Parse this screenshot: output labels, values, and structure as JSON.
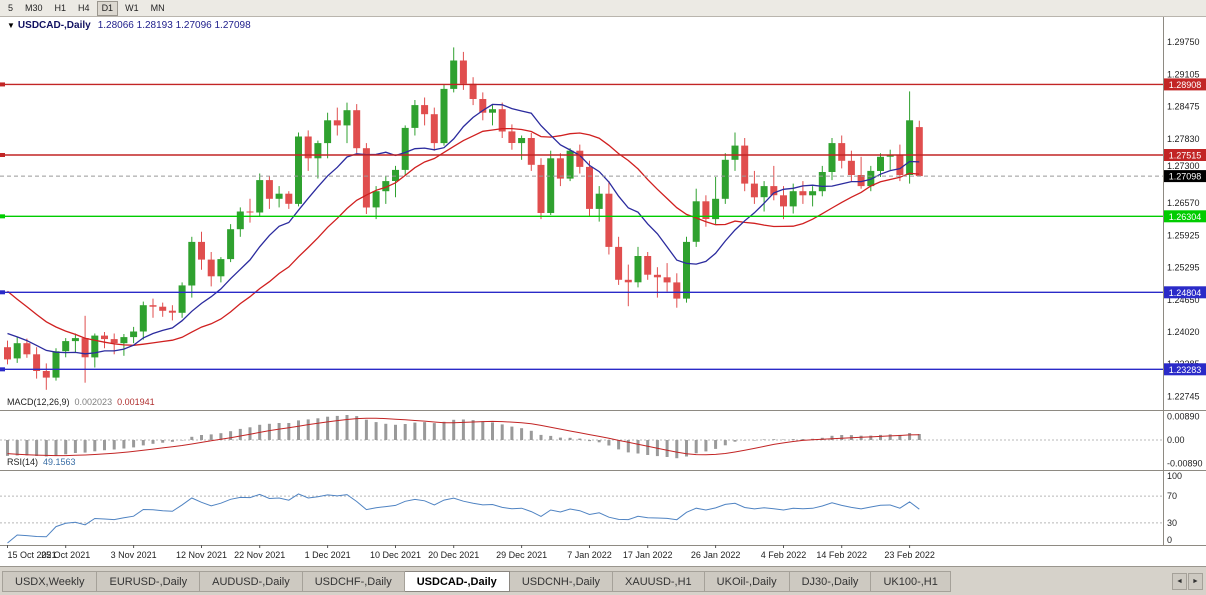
{
  "toolbar": {
    "timeframes": [
      "5",
      "M30",
      "H1",
      "H4",
      "D1",
      "W1",
      "MN"
    ],
    "active": "D1"
  },
  "chart": {
    "title_marker": "▼",
    "title_symbol": "USDCAD-,Daily",
    "title_ohlc": "1.28066 1.28193 1.27096 1.27098"
  },
  "tabs": {
    "items": [
      "USDX,Weekly",
      "EURUSD-,Daily",
      "AUDUSD-,Daily",
      "USDCHF-,Daily",
      "USDCAD-,Daily",
      "USDCNH-,Daily",
      "XAUUSD-,H1",
      "UKOil-,Daily",
      "DJ30-,Daily",
      "UK100-,H1"
    ],
    "active": "USDCAD-,Daily",
    "scroll_left": "◄",
    "scroll_right": "►"
  },
  "chart_data": {
    "type": "candlestick",
    "symbol": "USDCAD-",
    "timeframe": "Daily",
    "price_range": {
      "top": 1.302,
      "bottom": 1.225
    },
    "price_axis_labels": [
      "1.29750",
      "1.29105",
      "1.28475",
      "1.27830",
      "1.27300",
      "1.26570",
      "1.25925",
      "1.25295",
      "1.24650",
      "1.24020",
      "1.23385",
      "1.22745"
    ],
    "hlines": [
      {
        "price": 1.28908,
        "label": "1.28908",
        "color": "#c22525"
      },
      {
        "price": 1.27515,
        "label": "1.27515",
        "color": "#c22525"
      },
      {
        "price": 1.26304,
        "label": "1.26304",
        "color": "#00cc00"
      },
      {
        "price": 1.24804,
        "label": "1.24804",
        "color": "#2a2ac8"
      },
      {
        "price": 1.23283,
        "label": "1.23283",
        "color": "#2a2ac8"
      }
    ],
    "current_price": {
      "price": 1.27098,
      "label": "1.27098",
      "color": "#000000"
    },
    "date_labels": [
      {
        "label": "15 Oct 2021",
        "index": 0
      },
      {
        "label": "25 Oct 2021",
        "index": 6
      },
      {
        "label": "3 Nov 2021",
        "index": 13
      },
      {
        "label": "12 Nov 2021",
        "index": 20
      },
      {
        "label": "22 Nov 2021",
        "index": 26
      },
      {
        "label": "1 Dec 2021",
        "index": 33
      },
      {
        "label": "10 Dec 2021",
        "index": 40
      },
      {
        "label": "20 Dec 2021",
        "index": 46
      },
      {
        "label": "29 Dec 2021",
        "index": 53
      },
      {
        "label": "7 Jan 2022",
        "index": 60
      },
      {
        "label": "17 Jan 2022",
        "index": 66
      },
      {
        "label": "26 Jan 2022",
        "index": 73
      },
      {
        "label": "4 Feb 2022",
        "index": 80
      },
      {
        "label": "14 Feb 2022",
        "index": 86
      },
      {
        "label": "23 Feb 2022",
        "index": 93
      }
    ],
    "ma_fast_period": 10,
    "ma_slow_period": 20,
    "ma_seed_closes": [
      1.272,
      1.269,
      1.266,
      1.263,
      1.26,
      1.257,
      1.2545,
      1.252,
      1.25,
      1.248,
      1.2462,
      1.2446,
      1.2432,
      1.242,
      1.241,
      1.24,
      1.2392,
      1.2386,
      1.238,
      1.2376
    ],
    "candles": [
      [
        1.2372,
        1.2385,
        1.2338,
        1.2348
      ],
      [
        1.235,
        1.2393,
        1.2341,
        1.238
      ],
      [
        1.238,
        1.2389,
        1.2351,
        1.2358
      ],
      [
        1.2358,
        1.2372,
        1.231,
        1.2325
      ],
      [
        1.2325,
        1.234,
        1.2288,
        1.2312
      ],
      [
        1.2312,
        1.237,
        1.2306,
        1.2364
      ],
      [
        1.2364,
        1.239,
        1.2352,
        1.2384
      ],
      [
        1.2384,
        1.2399,
        1.2362,
        1.239
      ],
      [
        1.239,
        1.2434,
        1.2302,
        1.2352
      ],
      [
        1.2352,
        1.2399,
        1.2332,
        1.2395
      ],
      [
        1.2395,
        1.2402,
        1.237,
        1.2388
      ],
      [
        1.2388,
        1.2399,
        1.2358,
        1.238
      ],
      [
        1.238,
        1.2398,
        1.2355,
        1.2392
      ],
      [
        1.2392,
        1.2412,
        1.238,
        1.2403
      ],
      [
        1.2403,
        1.2462,
        1.2387,
        1.2455
      ],
      [
        1.2455,
        1.2468,
        1.243,
        1.2452
      ],
      [
        1.2452,
        1.246,
        1.2432,
        1.2444
      ],
      [
        1.2444,
        1.2455,
        1.2425,
        1.244
      ],
      [
        1.244,
        1.25,
        1.243,
        1.2494
      ],
      [
        1.2494,
        1.259,
        1.247,
        1.258
      ],
      [
        1.258,
        1.26,
        1.2525,
        1.2545
      ],
      [
        1.2545,
        1.256,
        1.2492,
        1.2512
      ],
      [
        1.2512,
        1.255,
        1.25,
        1.2546
      ],
      [
        1.2546,
        1.2615,
        1.254,
        1.2605
      ],
      [
        1.2605,
        1.2648,
        1.259,
        1.264
      ],
      [
        1.264,
        1.2665,
        1.2618,
        1.2638
      ],
      [
        1.2638,
        1.2715,
        1.263,
        1.2702
      ],
      [
        1.2702,
        1.271,
        1.2645,
        1.2665
      ],
      [
        1.2665,
        1.269,
        1.2648,
        1.2675
      ],
      [
        1.2675,
        1.268,
        1.2645,
        1.2655
      ],
      [
        1.2655,
        1.2796,
        1.265,
        1.2788
      ],
      [
        1.2788,
        1.28,
        1.272,
        1.2745
      ],
      [
        1.2745,
        1.278,
        1.2705,
        1.2775
      ],
      [
        1.2775,
        1.2835,
        1.2745,
        1.282
      ],
      [
        1.282,
        1.2845,
        1.279,
        1.281
      ],
      [
        1.281,
        1.2855,
        1.2775,
        1.284
      ],
      [
        1.284,
        1.2852,
        1.2755,
        1.2765
      ],
      [
        1.2765,
        1.2775,
        1.2635,
        1.2648
      ],
      [
        1.2648,
        1.269,
        1.2625,
        1.268
      ],
      [
        1.268,
        1.271,
        1.2655,
        1.27
      ],
      [
        1.27,
        1.273,
        1.2668,
        1.2722
      ],
      [
        1.2722,
        1.281,
        1.2712,
        1.2805
      ],
      [
        1.2805,
        1.286,
        1.279,
        1.285
      ],
      [
        1.285,
        1.2865,
        1.281,
        1.2832
      ],
      [
        1.2832,
        1.2845,
        1.276,
        1.2775
      ],
      [
        1.2775,
        1.289,
        1.277,
        1.2882
      ],
      [
        1.2882,
        1.2964,
        1.2875,
        1.2938
      ],
      [
        1.2938,
        1.2955,
        1.288,
        1.2892
      ],
      [
        1.2892,
        1.2905,
        1.285,
        1.2862
      ],
      [
        1.2862,
        1.2875,
        1.282,
        1.2835
      ],
      [
        1.2835,
        1.285,
        1.281,
        1.2842
      ],
      [
        1.2842,
        1.2855,
        1.2785,
        1.2798
      ],
      [
        1.2798,
        1.2812,
        1.2762,
        1.2775
      ],
      [
        1.2775,
        1.279,
        1.2742,
        1.2785
      ],
      [
        1.2785,
        1.2795,
        1.272,
        1.2732
      ],
      [
        1.2732,
        1.2745,
        1.2625,
        1.2637
      ],
      [
        1.2637,
        1.276,
        1.2633,
        1.2745
      ],
      [
        1.2745,
        1.2755,
        1.269,
        1.2705
      ],
      [
        1.2705,
        1.2765,
        1.27,
        1.276
      ],
      [
        1.276,
        1.2772,
        1.2715,
        1.2728
      ],
      [
        1.2728,
        1.274,
        1.263,
        1.2645
      ],
      [
        1.2645,
        1.269,
        1.262,
        1.2675
      ],
      [
        1.2675,
        1.27,
        1.2555,
        1.257
      ],
      [
        1.257,
        1.259,
        1.2495,
        1.2505
      ],
      [
        1.2505,
        1.2535,
        1.2453,
        1.25
      ],
      [
        1.25,
        1.257,
        1.249,
        1.2552
      ],
      [
        1.2552,
        1.256,
        1.2505,
        1.2515
      ],
      [
        1.2515,
        1.253,
        1.247,
        1.251
      ],
      [
        1.251,
        1.2538,
        1.2482,
        1.25
      ],
      [
        1.25,
        1.2518,
        1.245,
        1.2468
      ],
      [
        1.2468,
        1.259,
        1.246,
        1.258
      ],
      [
        1.258,
        1.2685,
        1.257,
        1.266
      ],
      [
        1.266,
        1.2672,
        1.261,
        1.2625
      ],
      [
        1.2625,
        1.2708,
        1.2615,
        1.2665
      ],
      [
        1.2665,
        1.2755,
        1.2655,
        1.2742
      ],
      [
        1.2742,
        1.2796,
        1.272,
        1.277
      ],
      [
        1.277,
        1.2785,
        1.268,
        1.2695
      ],
      [
        1.2695,
        1.272,
        1.2655,
        1.2668
      ],
      [
        1.2668,
        1.27,
        1.264,
        1.269
      ],
      [
        1.269,
        1.273,
        1.2662,
        1.2672
      ],
      [
        1.2672,
        1.269,
        1.2625,
        1.265
      ],
      [
        1.265,
        1.2695,
        1.2636,
        1.268
      ],
      [
        1.268,
        1.27,
        1.2655,
        1.2672
      ],
      [
        1.2672,
        1.269,
        1.265,
        1.268
      ],
      [
        1.268,
        1.273,
        1.267,
        1.2718
      ],
      [
        1.2718,
        1.2785,
        1.2702,
        1.2775
      ],
      [
        1.2775,
        1.279,
        1.2725,
        1.274
      ],
      [
        1.274,
        1.276,
        1.27,
        1.2712
      ],
      [
        1.2712,
        1.2748,
        1.2685,
        1.269
      ],
      [
        1.269,
        1.273,
        1.268,
        1.272
      ],
      [
        1.272,
        1.2755,
        1.2708,
        1.2748
      ],
      [
        1.2748,
        1.2762,
        1.2722,
        1.2752
      ],
      [
        1.2752,
        1.2772,
        1.27,
        1.2712
      ],
      [
        1.2712,
        1.2877,
        1.2695,
        1.282
      ],
      [
        1.28066,
        1.28193,
        1.27096,
        1.27098
      ]
    ],
    "indicators": {
      "macd": {
        "label": "MACD(12,26,9)",
        "value_main": "0.002023",
        "value_signal": "0.001941",
        "axis_labels": [
          "0.00890",
          "0.00",
          "-0.00890"
        ],
        "scale_max": 0.0105
      },
      "rsi": {
        "label": "RSI(14)",
        "value": "49.1563",
        "axis_labels": [
          "100",
          "70",
          "30",
          "0"
        ],
        "levels": [
          70,
          30
        ]
      }
    },
    "colors": {
      "bull": "#2fa12f",
      "bear": "#e04e4e",
      "ma_fast": "#2b2b9e",
      "ma_slow": "#d02020",
      "macd_hist": "#9a9a9a",
      "macd_signal": "#c22525",
      "rsi": "#4f83c2"
    }
  }
}
